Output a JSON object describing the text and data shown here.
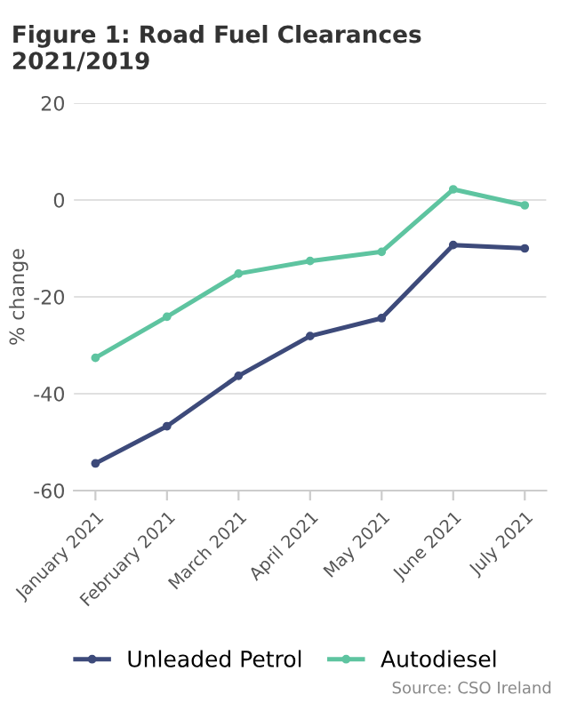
{
  "chart_data": {
    "type": "line",
    "title": "Figure 1: Road Fuel Clearances 2021/2019",
    "ylabel": "% change",
    "categories": [
      "January 2021",
      "February 2021",
      "March 2021",
      "April 2021",
      "May 2021",
      "June 2021",
      "July 2021"
    ],
    "series": [
      {
        "name": "Unleaded Petrol",
        "color": "#3d4a7a",
        "values": [
          -54.4,
          -46.7,
          -36.3,
          -28.1,
          -24.4,
          -9.3,
          -10.0
        ]
      },
      {
        "name": "Autodiesel",
        "color": "#5ec4a0",
        "values": [
          -32.6,
          -24.1,
          -15.2,
          -12.6,
          -10.7,
          2.2,
          -1.1
        ]
      }
    ],
    "ylim": [
      -60,
      20
    ],
    "yticks": [
      -60,
      -40,
      -20,
      0,
      20
    ],
    "grid": "y",
    "legend": "bottom",
    "marker": "circle",
    "annotations": [
      "Source: CSO Ireland"
    ]
  }
}
